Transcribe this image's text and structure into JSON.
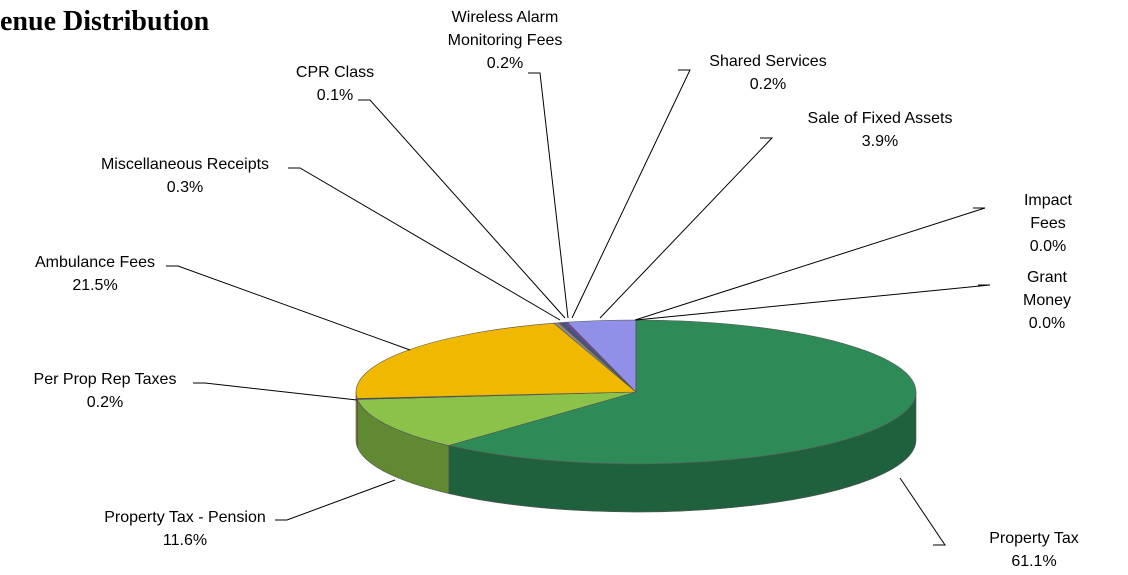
{
  "chart_data": {
    "type": "pie3d",
    "title": "enue Distribution",
    "categories": [
      "Property Tax",
      "Property Tax - Pension",
      "Per Prop Rep Taxes",
      "Ambulance Fees",
      "Miscellaneous Receipts",
      "CPR Class",
      "Wireless Alarm\nMonitoring Fees",
      "Shared Services",
      "Sale of Fixed Assets",
      "Impact Fees",
      "Grant Money"
    ],
    "values": [
      61.1,
      11.6,
      0.2,
      21.5,
      0.3,
      0.1,
      0.2,
      0.2,
      3.9,
      0.0,
      0.0
    ],
    "value_labels": [
      "61.1%",
      "11.6%",
      "0.2%",
      "21.5%",
      "0.3%",
      "0.1%",
      "0.2%",
      "0.2%",
      "3.9%",
      "0.0%",
      "0.0%"
    ],
    "colors": [
      "#2e8b57",
      "#8bc34a",
      "#1f2a60",
      "#f0b800",
      "#8a8a8a",
      "#c03030",
      "#2060a0",
      "#7f3f9f",
      "#9090e8",
      "#40a0a0",
      "#d07030"
    ]
  }
}
